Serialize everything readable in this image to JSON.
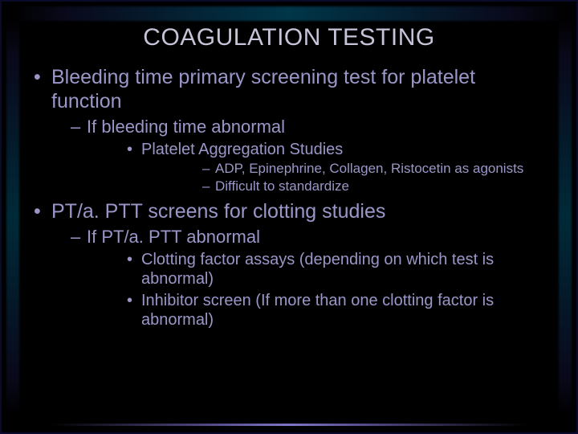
{
  "colors": {
    "background": "#000000",
    "text": "#9a97c8",
    "title": "#c5c4d8",
    "accent_gradient_mid": "#0078a0",
    "accent_bottom": "#8c82dc"
  },
  "typography": {
    "family": "Verdana, Tahoma, Arial, sans-serif",
    "title_fontsize_pt": 22,
    "lvl1_fontsize_pt": 19,
    "lvl2_fontsize_pt": 17,
    "lvl3_fontsize_pt": 15,
    "lvl4_fontsize_pt": 13,
    "weight": "normal"
  },
  "title": "COAGULATION TESTING",
  "bullets": {
    "a": {
      "text": "Bleeding time primary screening test for platelet function",
      "sub": {
        "a1": {
          "text": "If bleeding time abnormal",
          "sub": {
            "a1a": {
              "text": "Platelet Aggregation Studies",
              "sub": {
                "a1a1": "ADP, Epinephrine, Collagen, Ristocetin as agonists",
                "a1a2": "Difficult to standardize"
              }
            }
          }
        }
      }
    },
    "b": {
      "text": "PT/a. PTT screens for clotting studies",
      "sub": {
        "b1": {
          "text": "If PT/a. PTT abnormal",
          "sub": {
            "b1a": {
              "text": "Clotting factor assays (depending on which test is abnormal)"
            },
            "b1b": {
              "text": "Inhibitor screen (If more than one clotting factor is abnormal)"
            }
          }
        }
      }
    }
  }
}
